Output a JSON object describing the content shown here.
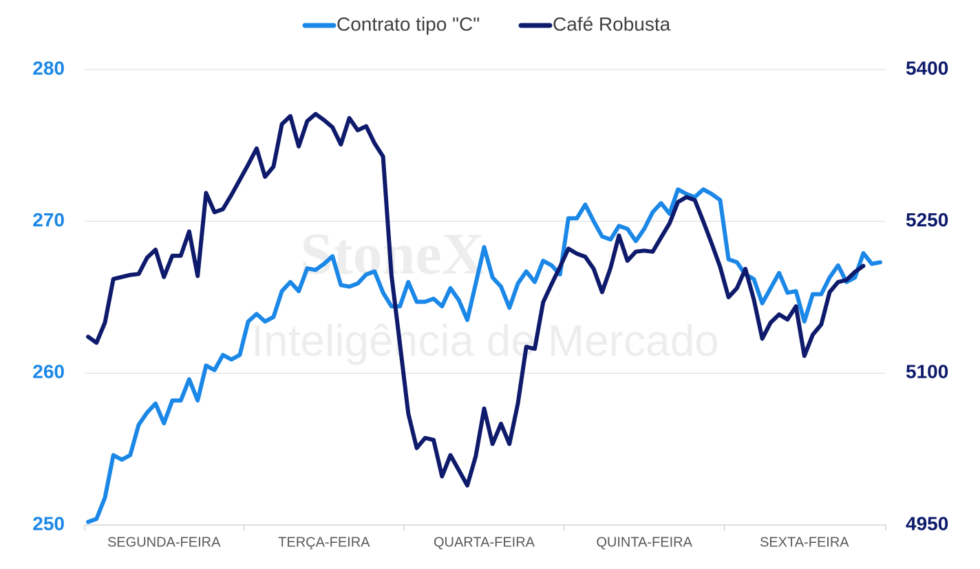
{
  "chart_data": {
    "type": "line",
    "watermark": [
      "StoneX",
      "Inteligência de Mercado"
    ],
    "categories": [
      null,
      null,
      null,
      null,
      null,
      null,
      null,
      null,
      null,
      "SEGUNDA-FEIRA",
      null,
      null,
      null,
      null,
      null,
      null,
      null,
      null,
      null,
      null,
      null,
      null,
      null,
      null,
      null,
      null,
      null,
      null,
      "TERÇA-FEIRA",
      null,
      null,
      null,
      null,
      null,
      null,
      null,
      null,
      null,
      null,
      null,
      null,
      null,
      null,
      null,
      null,
      null,
      null,
      "QUARTA-FEIRA",
      null,
      null,
      null,
      null,
      null,
      null,
      null,
      null,
      null,
      null,
      null,
      null,
      null,
      null,
      null,
      null,
      null,
      null,
      "QUINTA-FEIRA",
      null,
      null,
      null,
      null,
      null,
      null,
      null,
      null,
      null,
      null,
      null,
      null,
      null,
      null,
      null,
      null,
      null,
      null,
      "SEXTA-FEIRA",
      null,
      null,
      null,
      null,
      null,
      null,
      null,
      null,
      null
    ],
    "series": [
      {
        "name": "Contrato tipo \"C\"",
        "color": "#1b87e6",
        "axis": "y",
        "values": [
          250.2,
          250.4,
          251.8,
          254.6,
          254.3,
          254.6,
          256.6,
          257.4,
          258.0,
          256.7,
          258.2,
          258.2,
          259.6,
          258.2,
          260.5,
          260.2,
          261.2,
          260.9,
          261.2,
          263.4,
          263.9,
          263.4,
          263.7,
          265.4,
          266.0,
          265.4,
          266.9,
          266.8,
          267.2,
          267.7,
          265.8,
          265.7,
          265.9,
          266.5,
          266.7,
          265.3,
          264.4,
          264.4,
          266.0,
          264.7,
          264.7,
          264.9,
          264.4,
          265.6,
          264.8,
          263.5,
          265.9,
          268.3,
          266.3,
          265.7,
          264.3,
          265.9,
          266.7,
          266.0,
          267.4,
          267.1,
          266.5,
          270.2,
          270.2,
          271.1,
          270.0,
          269.0,
          268.8,
          269.7,
          269.5,
          268.7,
          269.5,
          270.6,
          271.2,
          270.5,
          272.1,
          271.8,
          271.6,
          272.1,
          271.8,
          271.4,
          267.5,
          267.3,
          266.5,
          266.2,
          264.6,
          265.6,
          266.6,
          265.3,
          265.4,
          263.4,
          265.2,
          265.2,
          266.3,
          267.1,
          266.0,
          266.3,
          267.9,
          267.2,
          267.3
        ]
      },
      {
        "name": "Café Robusta",
        "color": "#0e1a6b",
        "axis": "y2",
        "values": [
          5136,
          5130,
          5150,
          5193,
          5195,
          5197,
          5198,
          5214,
          5222,
          5195,
          5216,
          5216,
          5240,
          5196,
          5278,
          5259,
          5262,
          5276,
          5291,
          5306,
          5322,
          5294,
          5304,
          5346,
          5354,
          5324,
          5349,
          5356,
          5350,
          5343,
          5326,
          5352,
          5340,
          5344,
          5327,
          5314,
          5197,
          5129,
          5060,
          5026,
          5036,
          5034,
          4998,
          5019,
          5004,
          4989,
          5018,
          5065,
          5030,
          5050,
          5030,
          5070,
          5126,
          5124,
          5170,
          5188,
          5205,
          5223,
          5218,
          5215,
          5203,
          5180,
          5204,
          5236,
          5211,
          5220,
          5221,
          5220,
          5234,
          5248,
          5269,
          5274,
          5271,
          5250,
          5228,
          5205,
          5175,
          5184,
          5203,
          5173,
          5134,
          5150,
          5158,
          5153,
          5166,
          5117,
          5138,
          5148,
          5180,
          5190,
          5192,
          5200,
          5206,
          null,
          null
        ]
      }
    ],
    "ylim": [
      250,
      280
    ],
    "yticks": [
      250,
      260,
      270,
      280
    ],
    "y2lim": [
      4950,
      5400
    ],
    "y2ticks": [
      4950,
      5100,
      5250,
      5400
    ],
    "grid": true,
    "legend": "top"
  }
}
